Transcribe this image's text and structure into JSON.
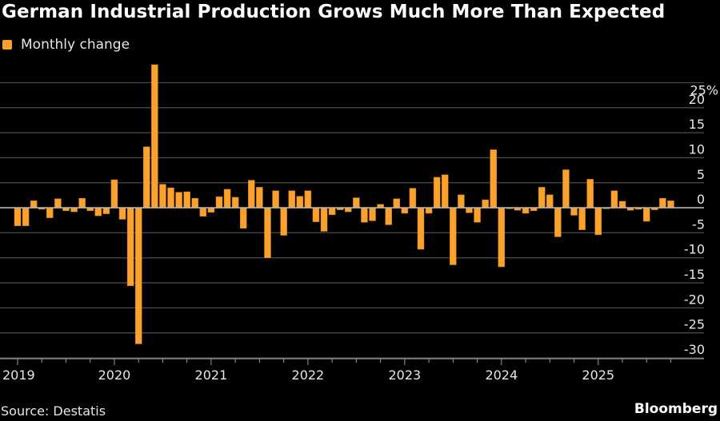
{
  "title": "German Industrial Production Grows Much More Than Expected",
  "source": "Source: Destatis",
  "brand": "Bloomberg",
  "colors": {
    "background": "#000000",
    "bar": "#FBA12E",
    "grid": "#4a4a4a",
    "zero_line": "#b5b5b5",
    "text": "#e6e6e6"
  },
  "chart_data": {
    "type": "bar",
    "title": "German Industrial Production Grows Much More Than Expected",
    "xlabel": "",
    "ylabel": "",
    "legend": [
      {
        "name": "Monthly change",
        "color": "#FBA12E"
      }
    ],
    "legend_position": "top-left",
    "grid": true,
    "y_axis_side": "right",
    "ylim": [
      -30,
      25
    ],
    "y_ticks": [
      25,
      20,
      15,
      10,
      5,
      0,
      -5,
      -10,
      -15,
      -20,
      -25,
      -30
    ],
    "y_tick_labels": [
      "25%",
      "20",
      "15",
      "10",
      "5",
      "0",
      "-5",
      "-10",
      "-15",
      "-20",
      "-25",
      "-30"
    ],
    "x_start": "2019-01",
    "x_end": "2025-10",
    "x_tick_labels": [
      "2019",
      "2020",
      "2021",
      "2022",
      "2023",
      "2024",
      "2025"
    ],
    "categories": [
      "2019-01",
      "2019-02",
      "2019-03",
      "2019-04",
      "2019-05",
      "2019-06",
      "2019-07",
      "2019-08",
      "2019-09",
      "2019-10",
      "2019-11",
      "2019-12",
      "2020-01",
      "2020-02",
      "2020-03",
      "2020-04",
      "2020-05",
      "2020-06",
      "2020-07",
      "2020-08",
      "2020-09",
      "2020-10",
      "2020-11",
      "2020-12",
      "2021-01",
      "2021-02",
      "2021-03",
      "2021-04",
      "2021-05",
      "2021-06",
      "2021-07",
      "2021-08",
      "2021-09",
      "2021-10",
      "2021-11",
      "2021-12",
      "2022-01",
      "2022-02",
      "2022-03",
      "2022-04",
      "2022-05",
      "2022-06",
      "2022-07",
      "2022-08",
      "2022-09",
      "2022-10",
      "2022-11",
      "2022-12",
      "2023-01",
      "2023-02",
      "2023-03",
      "2023-04",
      "2023-05",
      "2023-06",
      "2023-07",
      "2023-08",
      "2023-09",
      "2023-10",
      "2023-11",
      "2023-12",
      "2024-01",
      "2024-02",
      "2024-03",
      "2024-04",
      "2024-05",
      "2024-06",
      "2024-07",
      "2024-08",
      "2024-09",
      "2024-10",
      "2024-11",
      "2024-12",
      "2025-01",
      "2025-02",
      "2025-03",
      "2025-04",
      "2025-05",
      "2025-06",
      "2025-07",
      "2025-08",
      "2025-09",
      "2025-10"
    ],
    "series": [
      {
        "name": "Monthly change",
        "values": [
          -3.6,
          -3.6,
          1.4,
          -0.3,
          -2.0,
          1.8,
          -0.6,
          -0.8,
          1.9,
          -0.6,
          -1.6,
          -1.2,
          5.6,
          -2.3,
          -15.6,
          -27.2,
          12.2,
          28.6,
          4.7,
          4.0,
          3.1,
          3.2,
          1.9,
          -1.7,
          -0.9,
          2.2,
          3.7,
          2.1,
          -4.1,
          5.5,
          4.1,
          -10.0,
          3.4,
          -5.5,
          3.4,
          2.3,
          3.4,
          -2.8,
          -4.7,
          -1.4,
          -0.4,
          -0.8,
          2.0,
          -2.9,
          -2.6,
          0.7,
          -3.4,
          1.8,
          -1.1,
          3.9,
          -8.3,
          -1.1,
          6.1,
          6.6,
          -11.4,
          2.6,
          -1.0,
          -2.9,
          1.6,
          11.6,
          -11.8,
          -0.2,
          -0.5,
          -1.1,
          -0.6,
          4.1,
          2.6,
          -5.8,
          7.6,
          -1.5,
          -4.4,
          5.7,
          -5.4,
          -0.2,
          3.4,
          1.3,
          -0.5,
          -0.3,
          -2.7,
          -0.4,
          1.9,
          1.4
        ]
      }
    ]
  }
}
